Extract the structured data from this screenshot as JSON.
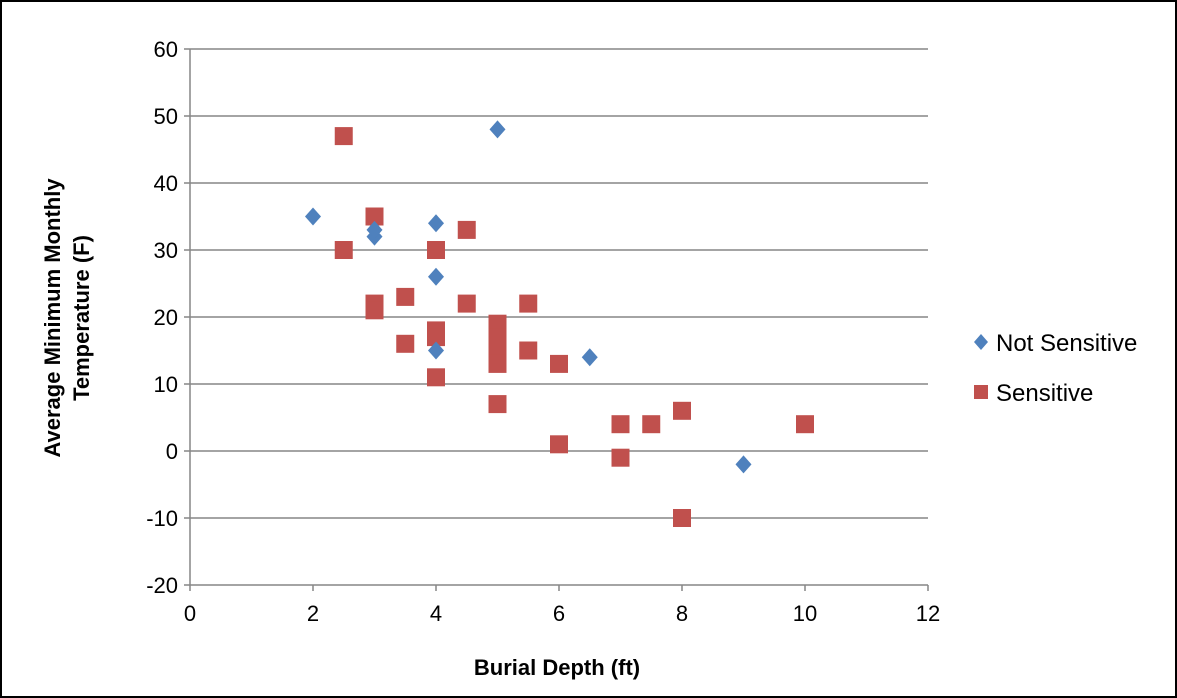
{
  "chart_data": {
    "type": "scatter",
    "title": "",
    "xlabel": "Burial Depth (ft)",
    "ylabel": "Average Minimum Monthly Temperature (F)",
    "ylabel_lines": [
      "Average Minimum Monthly",
      "Temperature (F)"
    ],
    "xlim": [
      0,
      12
    ],
    "ylim": [
      -20,
      60
    ],
    "xticks": [
      0,
      2,
      4,
      6,
      8,
      10,
      12
    ],
    "yticks": [
      -20,
      -10,
      0,
      10,
      20,
      30,
      40,
      50,
      60
    ],
    "grid": "horizontal",
    "legend_position": "right",
    "series": [
      {
        "name": "Not Sensitive",
        "marker": "diamond",
        "color": "#4f81bd",
        "points": [
          {
            "x": 2,
            "y": 35
          },
          {
            "x": 3,
            "y": 32
          },
          {
            "x": 3,
            "y": 33
          },
          {
            "x": 4,
            "y": 34
          },
          {
            "x": 4,
            "y": 26
          },
          {
            "x": 4,
            "y": 15
          },
          {
            "x": 5,
            "y": 48
          },
          {
            "x": 6.5,
            "y": 14
          },
          {
            "x": 9,
            "y": -2
          }
        ]
      },
      {
        "name": "Sensitive",
        "marker": "square",
        "color": "#c0504d",
        "points": [
          {
            "x": 2.5,
            "y": 47
          },
          {
            "x": 2.5,
            "y": 30
          },
          {
            "x": 3,
            "y": 35
          },
          {
            "x": 3,
            "y": 22
          },
          {
            "x": 3,
            "y": 21
          },
          {
            "x": 3.5,
            "y": 23
          },
          {
            "x": 3.5,
            "y": 16
          },
          {
            "x": 4,
            "y": 30
          },
          {
            "x": 4,
            "y": 18
          },
          {
            "x": 4,
            "y": 17
          },
          {
            "x": 4,
            "y": 11
          },
          {
            "x": 4.5,
            "y": 33
          },
          {
            "x": 4.5,
            "y": 22
          },
          {
            "x": 5,
            "y": 19
          },
          {
            "x": 5,
            "y": 17
          },
          {
            "x": 5,
            "y": 15
          },
          {
            "x": 5,
            "y": 13
          },
          {
            "x": 5,
            "y": 7
          },
          {
            "x": 5.5,
            "y": 22
          },
          {
            "x": 5.5,
            "y": 15
          },
          {
            "x": 6,
            "y": 13
          },
          {
            "x": 6,
            "y": 1
          },
          {
            "x": 7,
            "y": 4
          },
          {
            "x": 7,
            "y": -1
          },
          {
            "x": 7.5,
            "y": 4
          },
          {
            "x": 8,
            "y": 6
          },
          {
            "x": 8,
            "y": -10
          },
          {
            "x": 10,
            "y": 4
          }
        ]
      }
    ]
  },
  "colors": {
    "gridline": "#868686",
    "axis": "#868686"
  }
}
